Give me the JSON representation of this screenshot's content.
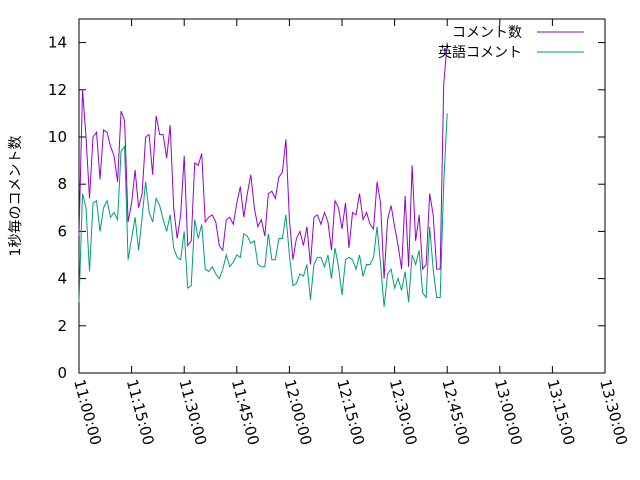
{
  "chart_data": {
    "type": "line",
    "title": "",
    "xlabel": "",
    "ylabel": "1秒毎のコメント数",
    "ylim": [
      0,
      15
    ],
    "yticks": [
      0,
      2,
      4,
      6,
      8,
      10,
      12,
      14
    ],
    "xticks": [
      "11:00:00",
      "11:15:00",
      "11:30:00",
      "11:45:00",
      "12:00:00",
      "12:15:00",
      "12:30:00",
      "12:45:00",
      "13:00:00",
      "13:15:00",
      "13:30:00"
    ],
    "xlim": [
      "11:00:00",
      "13:30:00"
    ],
    "x_step_minutes": 1,
    "grid": false,
    "legend_position": "top-right",
    "series": [
      {
        "name": "コメント数",
        "color": "#9400d3",
        "values": [
          5.8,
          12.0,
          10.0,
          7.4,
          10.0,
          10.2,
          8.2,
          10.3,
          10.2,
          9.6,
          9.2,
          8.1,
          11.1,
          10.7,
          6.4,
          7.2,
          8.6,
          7.0,
          7.6,
          10.0,
          10.1,
          8.4,
          10.9,
          10.1,
          10.1,
          9.1,
          10.5,
          7.0,
          5.7,
          6.7,
          9.2,
          5.4,
          5.6,
          8.9,
          8.8,
          9.3,
          6.4,
          6.6,
          6.7,
          6.4,
          5.4,
          5.2,
          6.5,
          6.6,
          6.3,
          7.2,
          7.9,
          6.6,
          7.6,
          8.4,
          7.0,
          6.2,
          6.5,
          5.8,
          7.6,
          7.7,
          7.4,
          8.3,
          8.5,
          9.9,
          6.5,
          4.8,
          5.7,
          6.0,
          5.4,
          6.2,
          4.6,
          6.6,
          6.7,
          6.3,
          6.8,
          6.4,
          5.2,
          7.3,
          7.0,
          6.1,
          7.2,
          5.3,
          6.8,
          6.7,
          7.6,
          6.5,
          6.8,
          6.3,
          6.1,
          8.1,
          7.2,
          4.0,
          6.5,
          7.1,
          6.2,
          5.4,
          4.4,
          7.5,
          4.5,
          8.8,
          5.6,
          6.7,
          4.4,
          4.6,
          7.6,
          6.7,
          4.4,
          4.4,
          12.2,
          14.0
        ]
      },
      {
        "name": "英語コメント",
        "color": "#009e73",
        "values": [
          3.0,
          7.6,
          7.0,
          4.3,
          7.2,
          7.3,
          6.0,
          7.0,
          7.3,
          6.6,
          6.8,
          6.5,
          9.4,
          9.6,
          4.8,
          5.7,
          6.6,
          5.2,
          6.6,
          8.1,
          6.8,
          6.4,
          7.4,
          7.1,
          6.5,
          6.0,
          6.7,
          5.3,
          4.9,
          4.8,
          6.0,
          3.6,
          3.7,
          6.5,
          5.7,
          6.3,
          4.4,
          4.3,
          4.5,
          4.2,
          4.0,
          4.4,
          5.0,
          4.5,
          4.7,
          5.0,
          4.9,
          5.9,
          5.8,
          5.5,
          5.6,
          4.6,
          4.5,
          4.5,
          5.9,
          4.8,
          4.8,
          5.7,
          5.7,
          6.7,
          5.0,
          3.7,
          3.8,
          4.2,
          4.1,
          4.6,
          3.1,
          4.6,
          4.9,
          4.9,
          4.5,
          5.0,
          4.0,
          5.3,
          4.5,
          3.3,
          4.8,
          4.9,
          4.8,
          4.4,
          5.0,
          4.1,
          4.6,
          4.6,
          4.9,
          6.2,
          4.6,
          2.8,
          4.2,
          4.4,
          3.6,
          4.0,
          3.5,
          4.3,
          3.0,
          5.0,
          4.6,
          5.2,
          3.4,
          3.2,
          6.2,
          4.4,
          3.2,
          3.2,
          8.0,
          11.0
        ]
      }
    ]
  }
}
